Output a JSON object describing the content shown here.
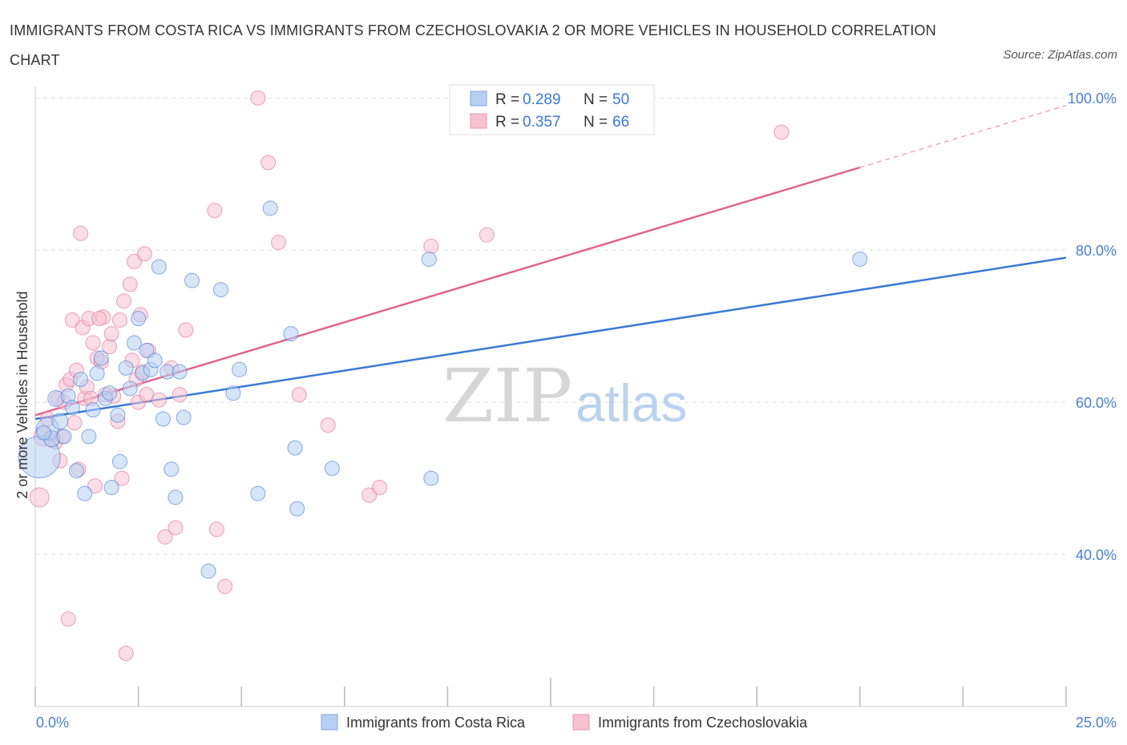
{
  "title": "IMMIGRANTS FROM COSTA RICA VS IMMIGRANTS FROM CZECHOSLOVAKIA 2 OR MORE VEHICLES IN HOUSEHOLD CORRELATION CHART",
  "source": "Source: ZipAtlas.com",
  "watermark": {
    "zip": "ZIP",
    "atlas": "atlas"
  },
  "colors": {
    "blue": "#3a78d4",
    "blue_fill": "#b7cff2",
    "pink": "#e06591",
    "pink_fill": "#f6c1d1",
    "tick_text": "#4a7fd0",
    "grid": "#dddddd"
  },
  "chart_data": {
    "type": "scatter",
    "title": "IMMIGRANTS FROM COSTA RICA VS IMMIGRANTS FROM CZECHOSLOVAKIA 2 OR MORE VEHICLES IN HOUSEHOLD CORRELATION CHART",
    "xlabel": "",
    "ylabel": "2 or more Vehicles in Household",
    "xlim": [
      0,
      25
    ],
    "ylim": [
      20,
      101.5
    ],
    "x_tick_labels": [
      {
        "value": 0,
        "label": "0.0%"
      },
      {
        "value": 25,
        "label": "25.0%"
      }
    ],
    "y_tick_labels": [
      {
        "value": 40,
        "label": "40.0%"
      },
      {
        "value": 60,
        "label": "60.0%"
      },
      {
        "value": 80,
        "label": "80.0%"
      },
      {
        "value": 100,
        "label": "100.0%"
      }
    ],
    "grid": true,
    "legend_position": "bottom-center",
    "stats_box_position": "top-center",
    "series": [
      {
        "name": "Immigrants from Costa Rica",
        "color": "#3a78d4",
        "fill": "#b7cff2",
        "stats": {
          "r_label": "R = ",
          "r": "0.289",
          "n_label": "N = ",
          "n": "50"
        },
        "trend": {
          "x1": 0,
          "y1": 57.8,
          "x2": 25,
          "y2": 79.0
        },
        "points": [
          [
            0.1,
            52.8,
            26
          ],
          [
            0.3,
            56.5,
            14
          ],
          [
            0.4,
            55.2,
            10
          ],
          [
            0.5,
            60.5,
            10
          ],
          [
            0.6,
            57.5,
            10
          ],
          [
            0.7,
            55.5,
            9
          ],
          [
            0.8,
            60.8,
            9
          ],
          [
            0.9,
            59.3,
            9
          ],
          [
            1.0,
            51.0,
            9
          ],
          [
            1.1,
            63.0,
            9
          ],
          [
            1.2,
            48.0,
            9
          ],
          [
            1.3,
            55.5,
            9
          ],
          [
            1.4,
            59.0,
            9
          ],
          [
            1.5,
            63.8,
            9
          ],
          [
            1.6,
            65.8,
            9
          ],
          [
            1.7,
            60.5,
            9
          ],
          [
            1.8,
            61.2,
            9
          ],
          [
            1.85,
            48.8,
            9
          ],
          [
            2.0,
            58.3,
            9
          ],
          [
            2.05,
            52.2,
            9
          ],
          [
            2.2,
            64.5,
            9
          ],
          [
            2.3,
            61.8,
            9
          ],
          [
            2.4,
            67.8,
            9
          ],
          [
            2.5,
            71.0,
            9
          ],
          [
            2.6,
            63.8,
            9
          ],
          [
            2.7,
            66.8,
            9
          ],
          [
            2.8,
            64.3,
            9
          ],
          [
            2.9,
            65.5,
            9
          ],
          [
            3.0,
            77.8,
            9
          ],
          [
            3.1,
            57.8,
            9
          ],
          [
            3.2,
            64.0,
            9
          ],
          [
            3.3,
            51.2,
            9
          ],
          [
            3.4,
            47.5,
            9
          ],
          [
            3.5,
            64.0,
            9
          ],
          [
            3.6,
            58.0,
            9
          ],
          [
            3.8,
            76.0,
            9
          ],
          [
            4.2,
            37.8,
            9
          ],
          [
            4.5,
            74.8,
            9
          ],
          [
            4.8,
            61.2,
            9
          ],
          [
            4.95,
            64.3,
            9
          ],
          [
            5.4,
            48.0,
            9
          ],
          [
            5.7,
            85.5,
            9
          ],
          [
            6.2,
            69.0,
            9
          ],
          [
            6.3,
            54.0,
            9
          ],
          [
            6.35,
            46.0,
            9
          ],
          [
            7.2,
            51.3,
            9
          ],
          [
            9.6,
            50.0,
            9
          ],
          [
            9.55,
            78.8,
            9
          ],
          [
            20.0,
            78.8,
            9
          ],
          [
            0.2,
            56.0,
            9
          ]
        ]
      },
      {
        "name": "Immigrants from Czechoslovakia",
        "color": "#e06591",
        "fill": "#f6c1d1",
        "stats": {
          "r_label": "R = ",
          "r": "0.357",
          "n_label": "N = ",
          "n": "66"
        },
        "trend": {
          "x1": 0,
          "y1": 58.3,
          "x2": 25,
          "y2": 99.0,
          "solid_until_x": 20.0
        },
        "points": [
          [
            0.1,
            47.5,
            12
          ],
          [
            0.2,
            55.5,
            12
          ],
          [
            0.3,
            57.8,
            9
          ],
          [
            0.4,
            55.0,
            9
          ],
          [
            0.5,
            54.8,
            9
          ],
          [
            0.55,
            60.5,
            9
          ],
          [
            0.6,
            52.3,
            9
          ],
          [
            0.7,
            60.0,
            9
          ],
          [
            0.75,
            62.3,
            9
          ],
          [
            0.8,
            31.5,
            9
          ],
          [
            0.85,
            63.0,
            9
          ],
          [
            0.9,
            70.8,
            9
          ],
          [
            0.95,
            57.3,
            9
          ],
          [
            1.0,
            64.2,
            9
          ],
          [
            1.05,
            51.2,
            9
          ],
          [
            1.1,
            82.2,
            9
          ],
          [
            1.15,
            69.8,
            9
          ],
          [
            1.2,
            60.5,
            9
          ],
          [
            1.25,
            62.0,
            9
          ],
          [
            1.3,
            71.0,
            9
          ],
          [
            1.4,
            67.8,
            9
          ],
          [
            1.45,
            49.0,
            9
          ],
          [
            1.5,
            65.8,
            9
          ],
          [
            1.6,
            65.3,
            9
          ],
          [
            1.65,
            71.2,
            9
          ],
          [
            1.7,
            61.0,
            9
          ],
          [
            1.8,
            67.3,
            9
          ],
          [
            1.85,
            69.0,
            9
          ],
          [
            1.9,
            60.8,
            9
          ],
          [
            2.0,
            57.5,
            9
          ],
          [
            2.05,
            70.8,
            9
          ],
          [
            2.1,
            50.0,
            9
          ],
          [
            2.15,
            73.3,
            9
          ],
          [
            2.2,
            27.0,
            9
          ],
          [
            2.3,
            75.5,
            9
          ],
          [
            2.4,
            78.5,
            9
          ],
          [
            2.45,
            63.0,
            9
          ],
          [
            2.5,
            60.0,
            9
          ],
          [
            2.55,
            71.5,
            9
          ],
          [
            2.6,
            64.0,
            9
          ],
          [
            2.65,
            79.5,
            9
          ],
          [
            2.7,
            61.0,
            9
          ],
          [
            2.75,
            66.8,
            9
          ],
          [
            3.0,
            60.3,
            9
          ],
          [
            3.15,
            42.3,
            9
          ],
          [
            3.3,
            64.5,
            9
          ],
          [
            3.4,
            43.5,
            9
          ],
          [
            3.5,
            61.0,
            9
          ],
          [
            3.65,
            69.5,
            9
          ],
          [
            4.35,
            85.2,
            9
          ],
          [
            4.4,
            43.3,
            9
          ],
          [
            4.6,
            35.8,
            9
          ],
          [
            5.4,
            100.0,
            9
          ],
          [
            5.65,
            91.5,
            9
          ],
          [
            5.9,
            81.0,
            9
          ],
          [
            6.4,
            61.0,
            9
          ],
          [
            7.1,
            57.0,
            9
          ],
          [
            8.1,
            47.8,
            9
          ],
          [
            8.35,
            48.8,
            9
          ],
          [
            9.6,
            80.5,
            9
          ],
          [
            10.95,
            82.0,
            9
          ],
          [
            18.1,
            95.5,
            9
          ],
          [
            1.55,
            71.0,
            9
          ],
          [
            0.65,
            55.5,
            9
          ],
          [
            2.35,
            65.5,
            9
          ],
          [
            1.35,
            60.5,
            9
          ]
        ]
      }
    ]
  }
}
